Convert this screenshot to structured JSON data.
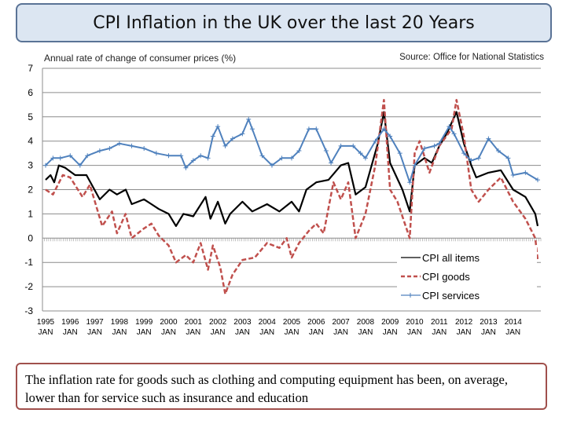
{
  "title": "CPI Inflation in the UK over the last 20 Years",
  "note": "The inflation rate for goods such as clothing and computing equipment has been, on average, lower than for service such as insurance and education",
  "chart_data": {
    "type": "line",
    "title": "CPI Inflation in the UK over the last 20 Years",
    "subtitle": "Annual rate of change of consumer prices (%)",
    "source": "Source: Office for National Statistics",
    "ylim": [
      -3,
      7
    ],
    "yticks": [
      -3,
      -2,
      -1,
      0,
      1,
      2,
      3,
      4,
      5,
      6,
      7
    ],
    "xlim": [
      1995,
      2015
    ],
    "xticks": [
      {
        "year": "1995",
        "month": "JAN"
      },
      {
        "year": "1996",
        "month": "JAN"
      },
      {
        "year": "1997",
        "month": "JAN"
      },
      {
        "year": "1998",
        "month": "JAN"
      },
      {
        "year": "1999",
        "month": "JAN"
      },
      {
        "year": "2000",
        "month": "JAN"
      },
      {
        "year": "2001",
        "month": "JAN"
      },
      {
        "year": "2002",
        "month": "JAN"
      },
      {
        "year": "2003",
        "month": "JAN"
      },
      {
        "year": "2004",
        "month": "JAN"
      },
      {
        "year": "2005",
        "month": "JAN"
      },
      {
        "year": "2006",
        "month": "JAN"
      },
      {
        "year": "2007",
        "month": "JAN"
      },
      {
        "year": "2008",
        "month": "JAN"
      },
      {
        "year": "2009",
        "month": "JAN"
      },
      {
        "year": "2010",
        "month": "JAN"
      },
      {
        "year": "2011",
        "month": "JAN"
      },
      {
        "year": "2012",
        "month": "JAN"
      },
      {
        "year": "2013",
        "month": "JAN"
      },
      {
        "year": "2014",
        "month": "JAN"
      }
    ],
    "grid": true,
    "legend": "bottom-right",
    "series": [
      {
        "name": "CPI all items",
        "color": "#000000",
        "style": "solid",
        "points": [
          [
            1995,
            2.4
          ],
          [
            1995.2,
            2.6
          ],
          [
            1995.35,
            2.3
          ],
          [
            1995.54,
            3.0
          ],
          [
            1995.8,
            2.9
          ],
          [
            1996.2,
            2.6
          ],
          [
            1996.66,
            2.6
          ],
          [
            1997.2,
            1.6
          ],
          [
            1997.6,
            2.0
          ],
          [
            1997.9,
            1.8
          ],
          [
            1998.26,
            2.0
          ],
          [
            1998.5,
            1.4
          ],
          [
            1999,
            1.6
          ],
          [
            1999.3,
            1.4
          ],
          [
            1999.6,
            1.2
          ],
          [
            2000,
            1.0
          ],
          [
            2000.3,
            0.5
          ],
          [
            2000.6,
            1.0
          ],
          [
            2001,
            0.9
          ],
          [
            2001.5,
            1.7
          ],
          [
            2001.7,
            0.8
          ],
          [
            2002,
            1.5
          ],
          [
            2002.3,
            0.6
          ],
          [
            2002.5,
            1.0
          ],
          [
            2003,
            1.5
          ],
          [
            2003.4,
            1.1
          ],
          [
            2004,
            1.4
          ],
          [
            2004.5,
            1.1
          ],
          [
            2005,
            1.5
          ],
          [
            2005.3,
            1.1
          ],
          [
            2005.6,
            2.0
          ],
          [
            2006,
            2.3
          ],
          [
            2006.5,
            2.4
          ],
          [
            2007,
            3.0
          ],
          [
            2007.3,
            3.1
          ],
          [
            2007.6,
            1.8
          ],
          [
            2008,
            2.1
          ],
          [
            2008.5,
            3.9
          ],
          [
            2008.75,
            5.2
          ],
          [
            2009,
            3.1
          ],
          [
            2009.5,
            2.0
          ],
          [
            2009.8,
            1.1
          ],
          [
            2010,
            3.0
          ],
          [
            2010.4,
            3.3
          ],
          [
            2010.7,
            3.1
          ],
          [
            2011,
            3.8
          ],
          [
            2011.3,
            4.3
          ],
          [
            2011.7,
            5.2
          ],
          [
            2012,
            3.9
          ],
          [
            2012.3,
            3.0
          ],
          [
            2012.5,
            2.5
          ],
          [
            2013,
            2.7
          ],
          [
            2013.5,
            2.8
          ],
          [
            2014,
            2.0
          ],
          [
            2014.5,
            1.7
          ],
          [
            2014.9,
            1.0
          ],
          [
            2015,
            0.5
          ]
        ]
      },
      {
        "name": "CPI goods",
        "color": "#c0504d",
        "style": "dashed",
        "points": [
          [
            1995,
            2.0
          ],
          [
            1995.3,
            1.8
          ],
          [
            1995.7,
            2.6
          ],
          [
            1996,
            2.5
          ],
          [
            1996.5,
            1.7
          ],
          [
            1996.8,
            2.2
          ],
          [
            1997.3,
            0.5
          ],
          [
            1997.7,
            1.1
          ],
          [
            1997.9,
            0.2
          ],
          [
            1998.25,
            1.0
          ],
          [
            1998.5,
            0.0
          ],
          [
            1999,
            0.4
          ],
          [
            1999.3,
            0.6
          ],
          [
            1999.6,
            0.1
          ],
          [
            2000,
            -0.3
          ],
          [
            2000.3,
            -1.0
          ],
          [
            2000.7,
            -0.7
          ],
          [
            2001,
            -1.0
          ],
          [
            2001.3,
            -0.2
          ],
          [
            2001.6,
            -1.3
          ],
          [
            2001.8,
            -0.3
          ],
          [
            2002.1,
            -1.2
          ],
          [
            2002.3,
            -2.3
          ],
          [
            2002.6,
            -1.5
          ],
          [
            2003,
            -0.9
          ],
          [
            2003.5,
            -0.8
          ],
          [
            2004,
            -0.2
          ],
          [
            2004.5,
            -0.4
          ],
          [
            2004.8,
            0.0
          ],
          [
            2005,
            -0.8
          ],
          [
            2005.3,
            -0.2
          ],
          [
            2005.7,
            0.3
          ],
          [
            2006,
            0.6
          ],
          [
            2006.3,
            0.2
          ],
          [
            2006.7,
            2.3
          ],
          [
            2007,
            1.6
          ],
          [
            2007.3,
            2.3
          ],
          [
            2007.6,
            0.0
          ],
          [
            2008,
            1.0
          ],
          [
            2008.4,
            3.0
          ],
          [
            2008.75,
            5.7
          ],
          [
            2009,
            2.0
          ],
          [
            2009.3,
            1.5
          ],
          [
            2009.8,
            0.0
          ],
          [
            2010,
            3.5
          ],
          [
            2010.2,
            4.0
          ],
          [
            2010.6,
            2.7
          ],
          [
            2011,
            3.8
          ],
          [
            2011.5,
            4.5
          ],
          [
            2011.7,
            5.7
          ],
          [
            2012,
            4.2
          ],
          [
            2012.3,
            2.0
          ],
          [
            2012.6,
            1.5
          ],
          [
            2013,
            2.0
          ],
          [
            2013.5,
            2.5
          ],
          [
            2013.75,
            2.0
          ],
          [
            2014,
            1.5
          ],
          [
            2014.5,
            0.8
          ],
          [
            2014.9,
            0.0
          ],
          [
            2015,
            -0.9
          ]
        ]
      },
      {
        "name": "CPI services",
        "color": "#4f81bd",
        "style": "solid-markers",
        "points": [
          [
            1995,
            3.0
          ],
          [
            1995.3,
            3.3
          ],
          [
            1995.6,
            3.3
          ],
          [
            1996,
            3.4
          ],
          [
            1996.4,
            3.0
          ],
          [
            1996.7,
            3.4
          ],
          [
            1997.2,
            3.6
          ],
          [
            1997.6,
            3.7
          ],
          [
            1998,
            3.9
          ],
          [
            1998.5,
            3.8
          ],
          [
            1999,
            3.7
          ],
          [
            1999.5,
            3.5
          ],
          [
            2000,
            3.4
          ],
          [
            2000.5,
            3.4
          ],
          [
            2000.7,
            2.9
          ],
          [
            2001,
            3.2
          ],
          [
            2001.3,
            3.4
          ],
          [
            2001.6,
            3.3
          ],
          [
            2001.8,
            4.2
          ],
          [
            2002,
            4.6
          ],
          [
            2002.3,
            3.8
          ],
          [
            2002.6,
            4.1
          ],
          [
            2003,
            4.3
          ],
          [
            2003.25,
            4.9
          ],
          [
            2003.4,
            4.5
          ],
          [
            2003.8,
            3.4
          ],
          [
            2004.2,
            3.0
          ],
          [
            2004.6,
            3.3
          ],
          [
            2005,
            3.3
          ],
          [
            2005.3,
            3.6
          ],
          [
            2005.7,
            4.5
          ],
          [
            2006,
            4.5
          ],
          [
            2006.4,
            3.6
          ],
          [
            2006.6,
            3.1
          ],
          [
            2007,
            3.8
          ],
          [
            2007.5,
            3.8
          ],
          [
            2007.8,
            3.5
          ],
          [
            2008,
            3.3
          ],
          [
            2008.4,
            4.0
          ],
          [
            2008.75,
            4.5
          ],
          [
            2009,
            4.2
          ],
          [
            2009.4,
            3.5
          ],
          [
            2009.8,
            2.3
          ],
          [
            2010,
            3.0
          ],
          [
            2010.4,
            3.7
          ],
          [
            2010.8,
            3.8
          ],
          [
            2011,
            3.9
          ],
          [
            2011.4,
            4.6
          ],
          [
            2011.6,
            4.3
          ],
          [
            2012,
            3.5
          ],
          [
            2012.3,
            3.2
          ],
          [
            2012.6,
            3.3
          ],
          [
            2013,
            4.1
          ],
          [
            2013.4,
            3.6
          ],
          [
            2013.8,
            3.3
          ],
          [
            2014,
            2.6
          ],
          [
            2014.5,
            2.7
          ],
          [
            2015,
            2.4
          ]
        ]
      }
    ]
  }
}
